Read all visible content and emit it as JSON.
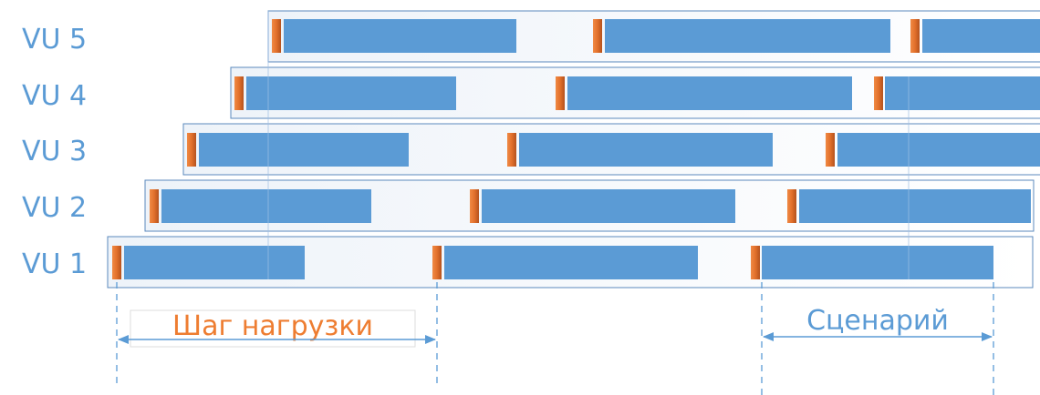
{
  "colors": {
    "label_blue": "#5b9bd5",
    "bar_blue": "#5b9bd5",
    "marker_orange": "#e2702b",
    "marker_dark": "#a8461a",
    "frame_blue": "#5b89bd",
    "accent_orange": "#ee7d31"
  },
  "diagram": {
    "rows": [
      {
        "label": "VU 5"
      },
      {
        "label": "VU 4"
      },
      {
        "label": "VU 3"
      },
      {
        "label": "VU 2"
      },
      {
        "label": "VU 1"
      }
    ],
    "step_label": "Шаг нагрузки",
    "scenario_label": "Сценарий"
  }
}
